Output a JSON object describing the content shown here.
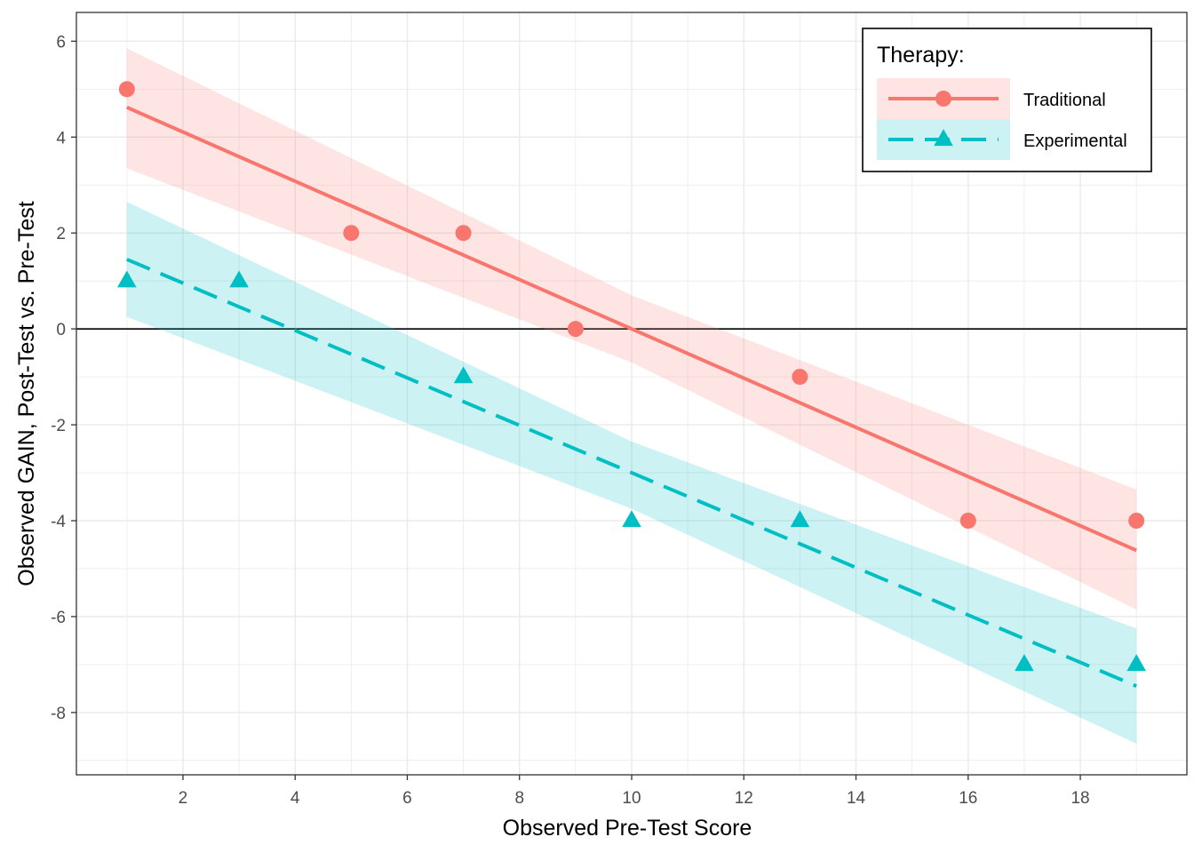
{
  "chart_data": {
    "type": "scatter",
    "xlabel": "Observed Pre-Test Score",
    "ylabel": "Observed GAIN, Post-Test vs. Pre-Test",
    "xlim": [
      0.1,
      19.9
    ],
    "ylim": [
      -9.3,
      6.6
    ],
    "x_ticks": [
      2,
      4,
      6,
      8,
      10,
      12,
      14,
      16,
      18
    ],
    "y_ticks": [
      -8,
      -6,
      -4,
      -2,
      0,
      2,
      4,
      6
    ],
    "y_tick_labels": [
      "-8",
      "-6",
      "-4",
      "-2",
      "0",
      "2",
      "4",
      "6"
    ],
    "x_tick_labels": [
      "2",
      "4",
      "6",
      "8",
      "10",
      "12",
      "14",
      "16",
      "18"
    ],
    "grid": true,
    "reference_line_y": 0,
    "legend": {
      "title": "Therapy:",
      "position": "top-right",
      "items": [
        "Traditional",
        "Experimental"
      ]
    },
    "series": [
      {
        "name": "Traditional",
        "color": "#F8766D",
        "marker": "circle",
        "line_style": "solid",
        "points": [
          [
            1,
            5
          ],
          [
            5,
            2
          ],
          [
            7,
            2
          ],
          [
            9,
            0
          ],
          [
            13,
            -1
          ],
          [
            16,
            -4
          ],
          [
            19,
            -4
          ]
        ],
        "fit": {
          "x": [
            1,
            19
          ],
          "y": [
            4.62,
            -4.62
          ]
        },
        "band": {
          "x": [
            1,
            10,
            19
          ],
          "upper": [
            5.85,
            0.7,
            -3.35
          ],
          "lower": [
            3.35,
            -0.7,
            -5.85
          ]
        }
      },
      {
        "name": "Experimental",
        "color": "#00BFC4",
        "marker": "triangle",
        "line_style": "dashed",
        "points": [
          [
            1,
            1
          ],
          [
            3,
            1
          ],
          [
            7,
            -1
          ],
          [
            10,
            -4
          ],
          [
            13,
            -4
          ],
          [
            17,
            -7
          ],
          [
            19,
            -7
          ]
        ],
        "fit": {
          "x": [
            1,
            19
          ],
          "y": [
            1.45,
            -7.45
          ]
        },
        "band": {
          "x": [
            1,
            10,
            19
          ],
          "upper": [
            2.65,
            -2.35,
            -6.25
          ],
          "lower": [
            0.25,
            -3.75,
            -8.65
          ]
        }
      }
    ]
  }
}
